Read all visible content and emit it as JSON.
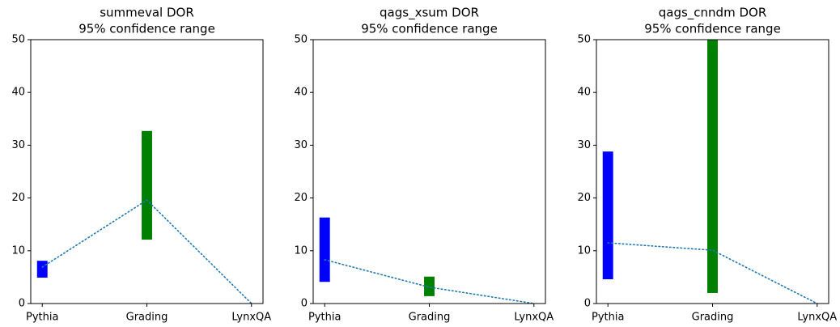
{
  "chart_data": [
    {
      "type": "range_bar",
      "title": [
        "summeval DOR",
        "95% confidence range"
      ],
      "categories": [
        "Pythia",
        "Grading",
        "LynxQA"
      ],
      "low": [
        4.9,
        12.1,
        null
      ],
      "high": [
        8.1,
        32.7,
        null
      ],
      "colors": [
        "#0000ff",
        "#008000",
        null
      ],
      "values": [
        6.9,
        19.6,
        0
      ],
      "line_color": "#1f77b4",
      "xlim": [
        -0.11,
        2.11
      ],
      "ylim": [
        0,
        50
      ],
      "yticks": [
        0,
        10,
        20,
        30,
        40,
        50
      ]
    },
    {
      "type": "range_bar",
      "title": [
        "qags_xsum DOR",
        "95% confidence range"
      ],
      "categories": [
        "Pythia",
        "Grading",
        "LynxQA"
      ],
      "low": [
        4.1,
        1.4,
        null
      ],
      "high": [
        16.3,
        5.1,
        null
      ],
      "colors": [
        "#0000ff",
        "#008000",
        null
      ],
      "values": [
        8.3,
        3.1,
        0
      ],
      "line_color": "#1f77b4",
      "xlim": [
        -0.11,
        2.11
      ],
      "ylim": [
        0,
        50
      ],
      "yticks": [
        0,
        10,
        20,
        30,
        40,
        50
      ]
    },
    {
      "type": "range_bar",
      "title": [
        "qags_cnndm DOR",
        "95% confidence range"
      ],
      "categories": [
        "Pythia",
        "Grading",
        "LynxQA"
      ],
      "low": [
        4.6,
        2.0,
        null
      ],
      "high": [
        28.8,
        50,
        null
      ],
      "colors": [
        "#0000ff",
        "#008000",
        null
      ],
      "values": [
        11.5,
        10.1,
        0
      ],
      "line_color": "#1f77b4",
      "xlim": [
        -0.11,
        2.11
      ],
      "ylim": [
        0,
        50
      ],
      "yticks": [
        0,
        10,
        20,
        30,
        40,
        50
      ]
    }
  ]
}
